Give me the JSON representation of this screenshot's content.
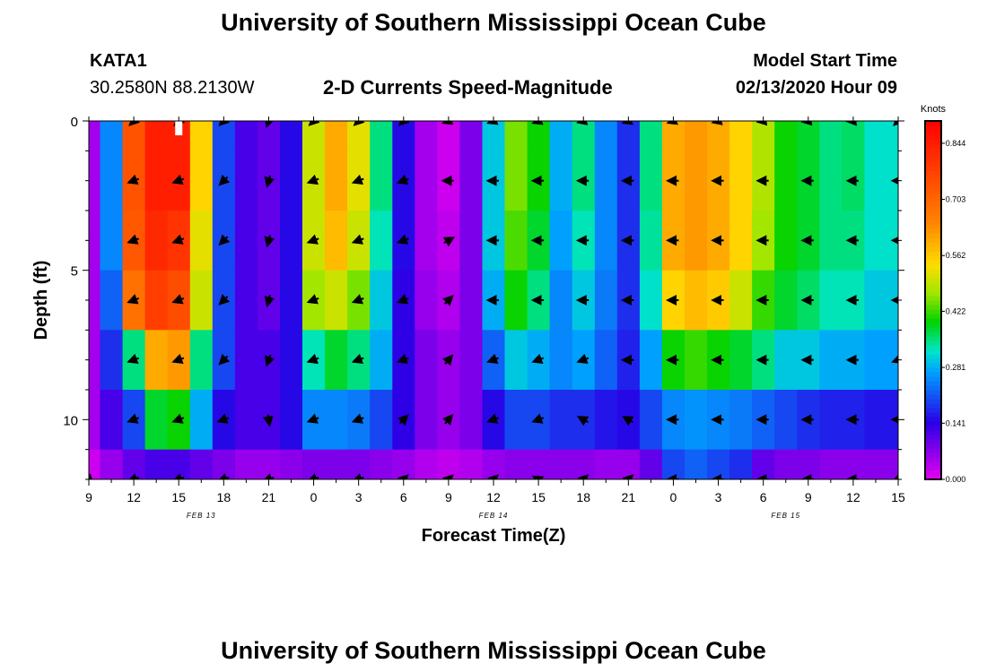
{
  "header": {
    "title_top": "University of Southern Mississippi Ocean Cube",
    "title_bottom": "University of Southern Mississippi Ocean Cube",
    "station_id": "KATA1",
    "station_coords": "30.2580N 88.2130W",
    "model_label": "Model Start Time",
    "model_time": "02/13/2020 Hour 09"
  },
  "chart_data": {
    "type": "heatmap",
    "title": "2-D Currents Speed-Magnitude",
    "xlabel": "Forecast Time(Z)",
    "ylabel": "Depth (ft)",
    "x_range_hours": [
      0,
      54
    ],
    "y_range_ft": [
      0,
      12
    ],
    "x_ticks": [
      {
        "hour": 0,
        "label": "9"
      },
      {
        "hour": 3,
        "label": "12"
      },
      {
        "hour": 6,
        "label": "15"
      },
      {
        "hour": 9,
        "label": "18"
      },
      {
        "hour": 12,
        "label": "21"
      },
      {
        "hour": 15,
        "label": "0"
      },
      {
        "hour": 18,
        "label": "3"
      },
      {
        "hour": 21,
        "label": "6"
      },
      {
        "hour": 24,
        "label": "9"
      },
      {
        "hour": 27,
        "label": "12"
      },
      {
        "hour": 30,
        "label": "15"
      },
      {
        "hour": 33,
        "label": "18"
      },
      {
        "hour": 36,
        "label": "21"
      },
      {
        "hour": 39,
        "label": "0"
      },
      {
        "hour": 42,
        "label": "3"
      },
      {
        "hour": 45,
        "label": "6"
      },
      {
        "hour": 48,
        "label": "9"
      },
      {
        "hour": 51,
        "label": "12"
      },
      {
        "hour": 54,
        "label": "15"
      }
    ],
    "date_labels": [
      {
        "hour": 7.5,
        "label": "FEB 13"
      },
      {
        "hour": 27,
        "label": "FEB 14"
      },
      {
        "hour": 46.5,
        "label": "FEB 15"
      }
    ],
    "y_ticks": [
      0,
      5,
      10
    ],
    "colorbar": {
      "unit": "Knots",
      "min": 0.0,
      "max": 0.9,
      "tick_values": [
        0.0,
        0.141,
        0.281,
        0.422,
        0.562,
        0.703,
        0.844
      ],
      "tick_labels": [
        "0.000",
        "0.141",
        "0.281",
        "0.422",
        "0.562",
        "0.703",
        "0.844"
      ]
    },
    "column_hours": [
      0,
      1.5,
      3,
      4.5,
      6,
      7.5,
      9,
      10.5,
      12,
      13.5,
      15,
      16.5,
      18,
      19.5,
      21,
      22.5,
      24,
      25.5,
      27,
      28.5,
      30,
      31.5,
      33,
      34.5,
      36,
      37.5,
      39,
      40.5,
      42,
      43.5,
      45,
      46.5,
      48,
      49.5,
      51,
      52.5,
      54
    ],
    "depth_levels_ft": [
      0,
      2,
      4,
      6,
      8,
      10,
      12
    ],
    "speed_knots_by_depth": [
      [
        0.05,
        0.25,
        0.74,
        0.84,
        0.84,
        0.55,
        0.2,
        0.12,
        0.1,
        0.15,
        0.5,
        0.6,
        0.52,
        0.35,
        0.15,
        0.05,
        0.02,
        0.08,
        0.3,
        0.45,
        0.4,
        0.28,
        0.35,
        0.25,
        0.18,
        0.35,
        0.6,
        0.62,
        0.6,
        0.55,
        0.48,
        0.4,
        0.38,
        0.35,
        0.36,
        0.32,
        0.32
      ],
      [
        0.05,
        0.25,
        0.74,
        0.84,
        0.84,
        0.55,
        0.2,
        0.12,
        0.1,
        0.15,
        0.5,
        0.6,
        0.52,
        0.35,
        0.15,
        0.05,
        0.02,
        0.08,
        0.3,
        0.45,
        0.4,
        0.28,
        0.35,
        0.25,
        0.18,
        0.35,
        0.6,
        0.62,
        0.6,
        0.55,
        0.48,
        0.4,
        0.38,
        0.35,
        0.36,
        0.32,
        0.32
      ],
      [
        0.05,
        0.25,
        0.73,
        0.82,
        0.8,
        0.52,
        0.2,
        0.12,
        0.1,
        0.15,
        0.5,
        0.58,
        0.5,
        0.33,
        0.15,
        0.05,
        0.03,
        0.08,
        0.3,
        0.43,
        0.38,
        0.27,
        0.33,
        0.25,
        0.18,
        0.34,
        0.6,
        0.62,
        0.6,
        0.55,
        0.47,
        0.4,
        0.38,
        0.35,
        0.35,
        0.32,
        0.32
      ],
      [
        0.05,
        0.22,
        0.68,
        0.78,
        0.75,
        0.5,
        0.2,
        0.12,
        0.1,
        0.15,
        0.47,
        0.5,
        0.45,
        0.3,
        0.14,
        0.06,
        0.04,
        0.08,
        0.28,
        0.4,
        0.35,
        0.25,
        0.3,
        0.24,
        0.18,
        0.32,
        0.55,
        0.58,
        0.56,
        0.5,
        0.42,
        0.38,
        0.36,
        0.33,
        0.33,
        0.3,
        0.3
      ],
      [
        0.05,
        0.18,
        0.35,
        0.6,
        0.62,
        0.35,
        0.2,
        0.12,
        0.12,
        0.15,
        0.33,
        0.38,
        0.35,
        0.28,
        0.14,
        0.08,
        0.06,
        0.08,
        0.22,
        0.3,
        0.28,
        0.25,
        0.27,
        0.22,
        0.17,
        0.27,
        0.4,
        0.42,
        0.4,
        0.38,
        0.35,
        0.3,
        0.3,
        0.28,
        0.28,
        0.27,
        0.27
      ],
      [
        0.05,
        0.12,
        0.2,
        0.38,
        0.4,
        0.28,
        0.15,
        0.12,
        0.12,
        0.15,
        0.25,
        0.25,
        0.24,
        0.2,
        0.14,
        0.08,
        0.06,
        0.08,
        0.15,
        0.2,
        0.2,
        0.18,
        0.18,
        0.16,
        0.15,
        0.2,
        0.25,
        0.26,
        0.25,
        0.24,
        0.22,
        0.2,
        0.18,
        0.17,
        0.17,
        0.16,
        0.16
      ],
      [
        0.02,
        0.06,
        0.1,
        0.12,
        0.12,
        0.1,
        0.08,
        0.06,
        0.06,
        0.07,
        0.08,
        0.08,
        0.08,
        0.07,
        0.06,
        0.04,
        0.03,
        0.04,
        0.06,
        0.07,
        0.07,
        0.07,
        0.07,
        0.06,
        0.06,
        0.1,
        0.2,
        0.22,
        0.2,
        0.18,
        0.1,
        0.08,
        0.08,
        0.07,
        0.07,
        0.07,
        0.07
      ]
    ],
    "vector_hours": [
      0,
      3,
      6,
      9,
      12,
      15,
      18,
      21,
      24,
      27,
      30,
      33,
      36,
      39,
      42,
      45,
      48,
      51,
      54
    ],
    "vector_depths_ft": [
      0,
      2,
      4,
      6,
      8,
      10,
      12
    ],
    "vector_bearing_deg": [
      [
        null,
        225,
        225,
        225,
        200,
        225,
        225,
        225,
        250,
        250,
        250,
        255,
        250,
        250,
        255,
        260,
        260,
        265,
        225
      ],
      [
        null,
        250,
        250,
        225,
        195,
        250,
        250,
        250,
        270,
        270,
        270,
        270,
        270,
        270,
        270,
        270,
        270,
        270,
        270
      ],
      [
        null,
        250,
        250,
        225,
        195,
        250,
        250,
        250,
        60,
        270,
        270,
        270,
        270,
        270,
        270,
        270,
        270,
        270,
        270
      ],
      [
        null,
        250,
        250,
        225,
        195,
        250,
        250,
        250,
        45,
        270,
        270,
        270,
        270,
        270,
        270,
        270,
        270,
        270,
        270
      ],
      [
        null,
        250,
        250,
        225,
        200,
        250,
        250,
        250,
        40,
        250,
        250,
        250,
        270,
        270,
        270,
        270,
        270,
        270,
        250
      ],
      [
        null,
        250,
        250,
        250,
        170,
        250,
        250,
        45,
        40,
        250,
        250,
        300,
        300,
        270,
        270,
        270,
        270,
        270,
        270
      ],
      [
        135,
        250,
        250,
        250,
        250,
        250,
        250,
        45,
        45,
        45,
        300,
        45,
        45,
        270,
        270,
        270,
        270,
        270,
        250
      ]
    ],
    "missing_data_marker": {
      "hour": 6,
      "depth_ft": 0
    }
  }
}
